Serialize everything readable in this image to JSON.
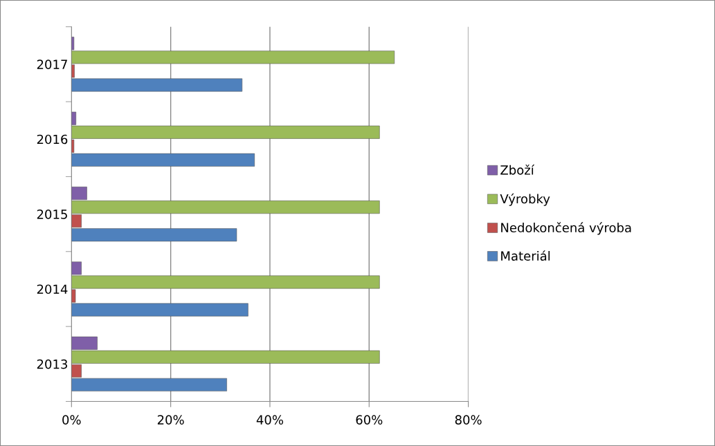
{
  "chart_data": {
    "type": "bar",
    "orientation": "horizontal",
    "categories": [
      "2017",
      "2016",
      "2015",
      "2014",
      "2013"
    ],
    "series": [
      {
        "name": "Zboží",
        "color": "#7f5fa8",
        "values": [
          0.5,
          0.9,
          3.1,
          2.0,
          5.2
        ]
      },
      {
        "name": "Výrobky",
        "color": "#9bbb59",
        "values": [
          65.1,
          62.1,
          62.1,
          62.1,
          62.1
        ]
      },
      {
        "name": "Nedokončená výroba",
        "color": "#c0504d",
        "values": [
          0.6,
          0.5,
          2.0,
          0.8,
          2.0
        ]
      },
      {
        "name": "Materiál",
        "color": "#4f81bd",
        "values": [
          34.4,
          36.9,
          33.3,
          35.6,
          31.3
        ]
      }
    ],
    "xlim": [
      0,
      80
    ],
    "xticks": [
      {
        "value": 0,
        "label": "0%"
      },
      {
        "value": 20,
        "label": "20%"
      },
      {
        "value": 40,
        "label": "40%"
      },
      {
        "value": 60,
        "label": "60%"
      },
      {
        "value": 80,
        "label": "80%"
      }
    ],
    "grid": "x",
    "legend": "right"
  }
}
